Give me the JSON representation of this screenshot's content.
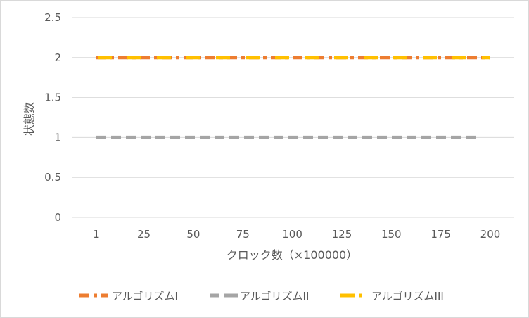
{
  "chart_data": {
    "type": "line",
    "title": "",
    "xlabel": "クロック数（×100000）",
    "ylabel": "状態数",
    "categories": [
      "1",
      "25",
      "50",
      "75",
      "100",
      "125",
      "150",
      "175",
      "200"
    ],
    "x": [
      1,
      25,
      50,
      75,
      100,
      125,
      150,
      175,
      200
    ],
    "xlim": [
      1,
      200
    ],
    "ylim": [
      0,
      2.5
    ],
    "yticks": [
      "0",
      "0.5",
      "1",
      "1.5",
      "2",
      "2.5"
    ],
    "grid": true,
    "legend_position": "bottom",
    "series": [
      {
        "name": "アルゴリズムI",
        "color": "#ED7D31",
        "x_range": [
          1,
          200
        ],
        "values": [
          2,
          2,
          2,
          2,
          2,
          2,
          2,
          2,
          2
        ]
      },
      {
        "name": "アルゴリズムII",
        "color": "#A5A5A5",
        "x_range": [
          1,
          194
        ],
        "values": [
          1,
          1,
          1,
          1,
          1,
          1,
          1,
          1,
          1
        ]
      },
      {
        "name": "アルゴリズムIII",
        "color": "#FFC000",
        "x_range": [
          1,
          200
        ],
        "values": [
          2,
          2,
          2,
          2,
          2,
          2,
          2,
          2,
          2
        ]
      }
    ]
  }
}
